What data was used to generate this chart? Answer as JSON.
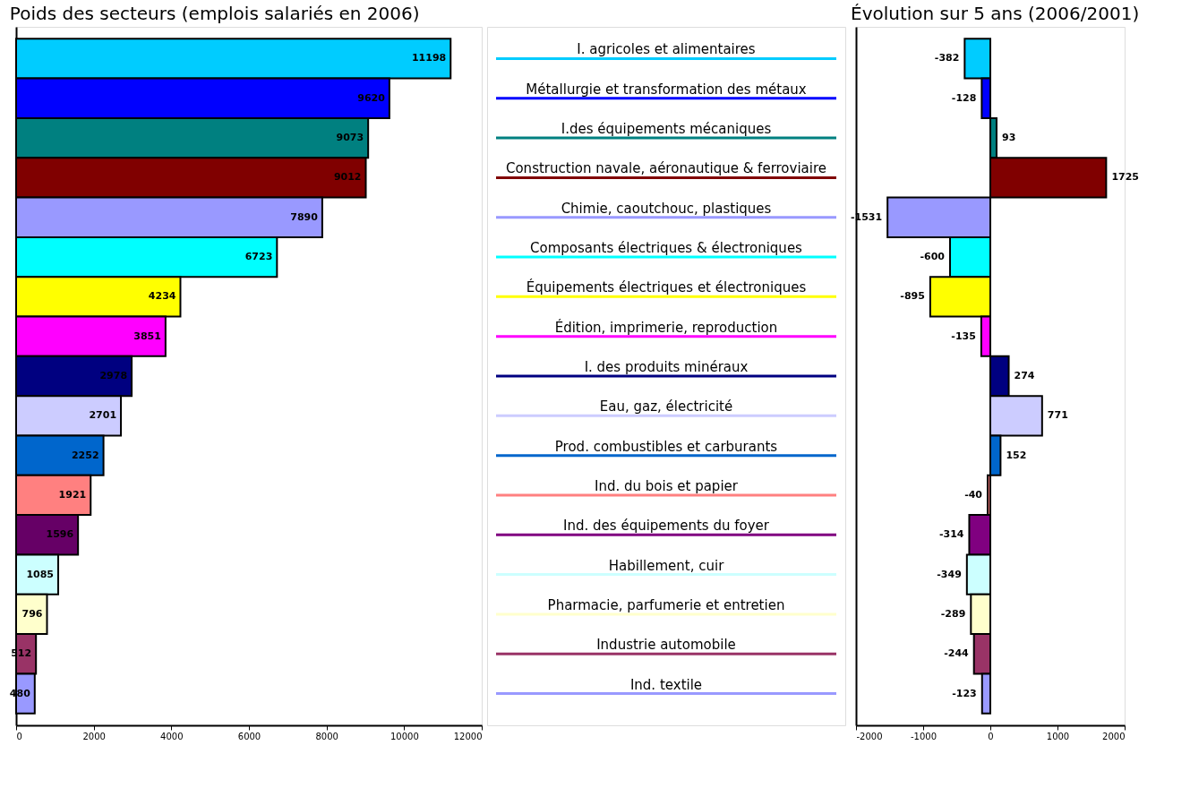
{
  "chart_data": [
    {
      "type": "bar",
      "orientation": "horizontal",
      "title": "Poids des secteurs (emplois salariés en 2006)",
      "categories": [
        null,
        null,
        null,
        null,
        null,
        null,
        null,
        null,
        null,
        null,
        null,
        null,
        null,
        null,
        null,
        null,
        null
      ],
      "values": [
        11198,
        9620,
        9073,
        9012,
        7890,
        6723,
        4234,
        3851,
        2978,
        2701,
        2252,
        1921,
        1596,
        1085,
        796,
        512,
        480
      ],
      "colors": [
        "#00ccff",
        "#0000ff",
        "#008080",
        "#800000",
        "#9999ff",
        "#00ffff",
        "#ffff00",
        "#ff00ff",
        "#000080",
        "#ccccff",
        "#0066cc",
        "#ff8080",
        "#660066",
        "#ccffff",
        "#ffffcc",
        "#993366",
        "#9999ff"
      ],
      "xlim": [
        0,
        12000
      ],
      "xticks": [
        0,
        2000,
        4000,
        6000,
        8000,
        10000,
        12000
      ],
      "data_labels": true,
      "tick_labels": "x"
    },
    {
      "type": "bar",
      "orientation": "horizontal",
      "title": "Évolution sur 5 ans (2006/2001)",
      "categories": [
        "I. agricoles et alimentaires",
        "Métallurgie et transformation des métaux",
        "I.des équipements mécaniques",
        "Construction navale, aéronautique & ferroviaire",
        "Chimie, caoutchouc, plastiques",
        "Composants électriques & électroniques",
        "Équipements électriques et électroniques",
        "Édition, imprimerie, reproduction",
        "I. des produits minéraux",
        "Eau, gaz, électricité",
        "Prod. combustibles et carburants",
        "Ind. du bois et papier",
        "Ind. des équipements du foyer",
        "Habillement, cuir",
        "Pharmacie, parfumerie et entretien",
        "Industrie  automobile",
        "Ind. textile"
      ],
      "values": [
        -382,
        -128,
        93,
        1725,
        -1531,
        -600,
        -895,
        -135,
        274,
        771,
        152,
        -40,
        -314,
        -349,
        -289,
        -244,
        -123
      ],
      "colors": [
        "#00ccff",
        "#0000ff",
        "#008080",
        "#800000",
        "#9999ff",
        "#00ffff",
        "#ffff00",
        "#ff00ff",
        "#000080",
        "#ccccff",
        "#0066cc",
        "#ff8080",
        "#800080",
        "#ccffff",
        "#ffffcc",
        "#993366",
        "#9999ff"
      ],
      "xlim": [
        -2000,
        2000
      ],
      "xticks": [
        -2000,
        -1000,
        0,
        1000,
        2000
      ],
      "data_labels": true,
      "tick_labels": "x"
    }
  ]
}
